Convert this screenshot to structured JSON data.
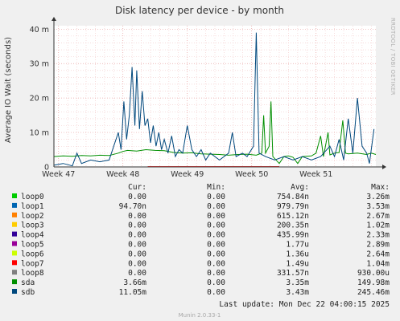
{
  "chart_data": {
    "type": "line",
    "title": "Disk latency per device - by month",
    "ylabel": "Average IO Wait (seconds)",
    "side_label": "RRDTOOL / TOBI OETIKER",
    "x_ticks": [
      "Week 47",
      "Week 48",
      "Week 49",
      "Week 50",
      "Week 51"
    ],
    "y_ticks": [
      "0",
      "10 m",
      "20 m",
      "30 m",
      "40 m"
    ],
    "ylim": [
      0,
      0.041
    ],
    "grid": true,
    "legend_header": {
      "cur": "Cur:",
      "min": "Min:",
      "avg": "Avg:",
      "max": "Max:"
    },
    "legend": [
      {
        "name": "loop0",
        "color": "#00cc00",
        "cur": "0.00",
        "min": "0.00",
        "avg": "754.84n",
        "max": "3.26m"
      },
      {
        "name": "loop1",
        "color": "#0066b3",
        "cur": "94.70n",
        "min": "0.00",
        "avg": "979.79n",
        "max": "3.53m"
      },
      {
        "name": "loop2",
        "color": "#ff8000",
        "cur": "0.00",
        "min": "0.00",
        "avg": "615.12n",
        "max": "2.67m"
      },
      {
        "name": "loop3",
        "color": "#ffcc00",
        "cur": "0.00",
        "min": "0.00",
        "avg": "200.35n",
        "max": "1.02m"
      },
      {
        "name": "loop4",
        "color": "#330099",
        "cur": "0.00",
        "min": "0.00",
        "avg": "435.99n",
        "max": "2.33m"
      },
      {
        "name": "loop5",
        "color": "#990099",
        "cur": "0.00",
        "min": "0.00",
        "avg": "1.77u",
        "max": "2.89m"
      },
      {
        "name": "loop6",
        "color": "#ccff00",
        "cur": "0.00",
        "min": "0.00",
        "avg": "1.36u",
        "max": "2.64m"
      },
      {
        "name": "loop7",
        "color": "#ff0000",
        "cur": "0.00",
        "min": "0.00",
        "avg": "1.49u",
        "max": "1.04m"
      },
      {
        "name": "loop8",
        "color": "#808080",
        "cur": "0.00",
        "min": "0.00",
        "avg": "331.57n",
        "max": "930.00u"
      },
      {
        "name": "sda",
        "color": "#008f00",
        "cur": "3.66m",
        "min": "0.00",
        "avg": "3.35m",
        "max": "149.98m"
      },
      {
        "name": "sdb",
        "color": "#00487d",
        "cur": "11.05m",
        "min": "0.00",
        "avg": "3.43m",
        "max": "245.46m"
      }
    ],
    "series": [
      {
        "name": "sda",
        "color": "#008f00",
        "values": [
          [
            0.0,
            0.003
          ],
          [
            1.0,
            0.0032
          ],
          [
            2.0,
            0.0031
          ],
          [
            3.0,
            0.0033
          ],
          [
            4.0,
            0.0032
          ],
          [
            5.0,
            0.0034
          ],
          [
            6.0,
            0.0033
          ],
          [
            7.0,
            0.004
          ],
          [
            7.5,
            0.0045
          ],
          [
            8.0,
            0.0048
          ],
          [
            9.0,
            0.0046
          ],
          [
            10.0,
            0.005
          ],
          [
            11.0,
            0.0048
          ],
          [
            12.0,
            0.0047
          ],
          [
            13.0,
            0.0042
          ],
          [
            14.0,
            0.004
          ],
          [
            15.0,
            0.0041
          ],
          [
            16.0,
            0.0038
          ],
          [
            17.0,
            0.0037
          ],
          [
            18.0,
            0.0036
          ],
          [
            19.0,
            0.0034
          ],
          [
            20.0,
            0.0036
          ],
          [
            21.0,
            0.0037
          ],
          [
            22.0,
            0.0034
          ],
          [
            22.6,
            0.004
          ],
          [
            22.8,
            0.015
          ],
          [
            23.0,
            0.004
          ],
          [
            23.4,
            0.006
          ],
          [
            23.6,
            0.019
          ],
          [
            23.8,
            0.003
          ],
          [
            24.5,
            0.001
          ],
          [
            25.0,
            0.003
          ],
          [
            25.5,
            0.0032
          ],
          [
            26.0,
            0.0028
          ],
          [
            26.5,
            0.001
          ],
          [
            27.0,
            0.003
          ],
          [
            28.0,
            0.0032
          ],
          [
            28.5,
            0.004
          ],
          [
            29.0,
            0.009
          ],
          [
            29.3,
            0.003
          ],
          [
            29.8,
            0.01
          ],
          [
            30.0,
            0.0035
          ],
          [
            30.5,
            0.004
          ],
          [
            31.0,
            0.0042
          ],
          [
            31.4,
            0.0135
          ],
          [
            31.7,
            0.004
          ],
          [
            32.0,
            0.0038
          ],
          [
            33.0,
            0.004
          ],
          [
            34.0,
            0.0036
          ],
          [
            34.5,
            0.004
          ],
          [
            35.0,
            0.0036
          ]
        ]
      },
      {
        "name": "sdb",
        "color": "#00487d",
        "values": [
          [
            0.0,
            0.0005
          ],
          [
            1.0,
            0.001
          ],
          [
            2.0,
            0.0003
          ],
          [
            2.5,
            0.004
          ],
          [
            3.0,
            0.001
          ],
          [
            4.0,
            0.002
          ],
          [
            5.0,
            0.0015
          ],
          [
            6.0,
            0.002
          ],
          [
            6.5,
            0.006
          ],
          [
            7.0,
            0.01
          ],
          [
            7.3,
            0.005
          ],
          [
            7.6,
            0.019
          ],
          [
            7.9,
            0.008
          ],
          [
            8.2,
            0.015
          ],
          [
            8.5,
            0.029
          ],
          [
            8.8,
            0.012
          ],
          [
            9.0,
            0.028
          ],
          [
            9.3,
            0.011
          ],
          [
            9.6,
            0.022
          ],
          [
            9.9,
            0.012
          ],
          [
            10.2,
            0.014
          ],
          [
            10.5,
            0.007
          ],
          [
            10.8,
            0.012
          ],
          [
            11.1,
            0.006
          ],
          [
            11.4,
            0.01
          ],
          [
            11.7,
            0.005
          ],
          [
            12.0,
            0.008
          ],
          [
            12.4,
            0.004
          ],
          [
            12.8,
            0.009
          ],
          [
            13.2,
            0.003
          ],
          [
            13.6,
            0.005
          ],
          [
            14.0,
            0.004
          ],
          [
            14.5,
            0.012
          ],
          [
            15.0,
            0.005
          ],
          [
            15.5,
            0.003
          ],
          [
            16.0,
            0.005
          ],
          [
            16.5,
            0.002
          ],
          [
            17.0,
            0.004
          ],
          [
            18.0,
            0.002
          ],
          [
            19.0,
            0.004
          ],
          [
            19.4,
            0.01
          ],
          [
            19.8,
            0.003
          ],
          [
            20.5,
            0.004
          ],
          [
            21.0,
            0.003
          ],
          [
            21.7,
            0.006
          ],
          [
            22.0,
            0.039
          ],
          [
            22.3,
            0.004
          ],
          [
            23.0,
            0.003
          ],
          [
            24.0,
            0.002
          ],
          [
            25.0,
            0.003
          ],
          [
            26.0,
            0.002
          ],
          [
            27.0,
            0.003
          ],
          [
            28.0,
            0.002
          ],
          [
            29.0,
            0.003
          ],
          [
            30.0,
            0.006
          ],
          [
            30.5,
            0.003
          ],
          [
            31.0,
            0.008
          ],
          [
            31.5,
            0.002
          ],
          [
            32.0,
            0.014
          ],
          [
            32.5,
            0.004
          ],
          [
            33.0,
            0.02
          ],
          [
            33.5,
            0.006
          ],
          [
            34.0,
            0.004
          ],
          [
            34.3,
            0.001
          ],
          [
            34.8,
            0.011
          ]
        ]
      }
    ]
  },
  "footer": {
    "last_update_label": "Last update:",
    "last_update_value": "Mon Dec 22 04:00:15 2025",
    "version": "Munin 2.0.33-1"
  }
}
